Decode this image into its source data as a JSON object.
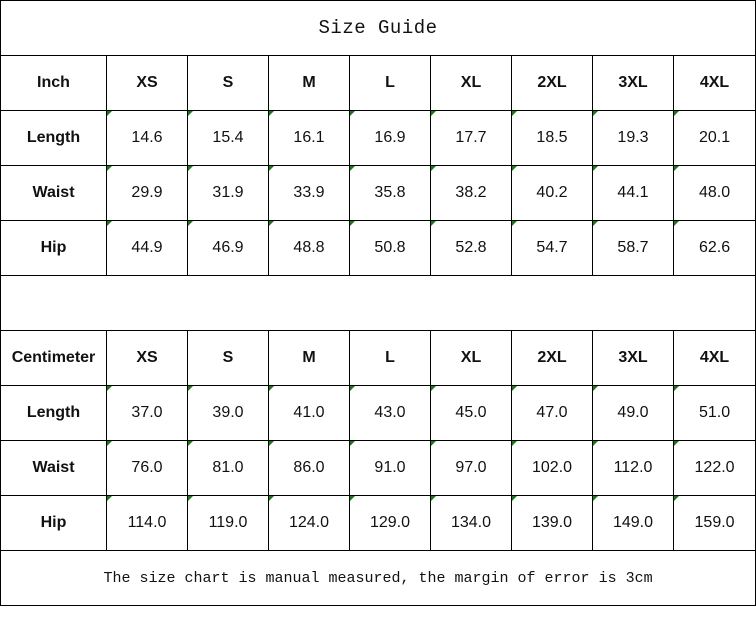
{
  "title": "Size Guide",
  "sizes": [
    "XS",
    "S",
    "M",
    "L",
    "XL",
    "2XL",
    "3XL",
    "4XL"
  ],
  "inch": {
    "unit_label": "Inch",
    "rows": [
      {
        "label": "Length",
        "values": [
          "14.6",
          "15.4",
          "16.1",
          "16.9",
          "17.7",
          "18.5",
          "19.3",
          "20.1"
        ]
      },
      {
        "label": "Waist",
        "values": [
          "29.9",
          "31.9",
          "33.9",
          "35.8",
          "38.2",
          "40.2",
          "44.1",
          "48.0"
        ]
      },
      {
        "label": "Hip",
        "values": [
          "44.9",
          "46.9",
          "48.8",
          "50.8",
          "52.8",
          "54.7",
          "58.7",
          "62.6"
        ]
      }
    ]
  },
  "cm": {
    "unit_label": "Centimeter",
    "rows": [
      {
        "label": "Length",
        "values": [
          "37.0",
          "39.0",
          "41.0",
          "43.0",
          "45.0",
          "47.0",
          "49.0",
          "51.0"
        ]
      },
      {
        "label": "Waist",
        "values": [
          "76.0",
          "81.0",
          "86.0",
          "91.0",
          "97.0",
          "102.0",
          "112.0",
          "122.0"
        ]
      },
      {
        "label": "Hip",
        "values": [
          "114.0",
          "119.0",
          "124.0",
          "129.0",
          "134.0",
          "139.0",
          "149.0",
          "159.0"
        ]
      }
    ]
  },
  "note": "The size chart is manual measured, the margin of error is 3cm",
  "colors": {
    "corner_marker": "#1a7a1a"
  }
}
